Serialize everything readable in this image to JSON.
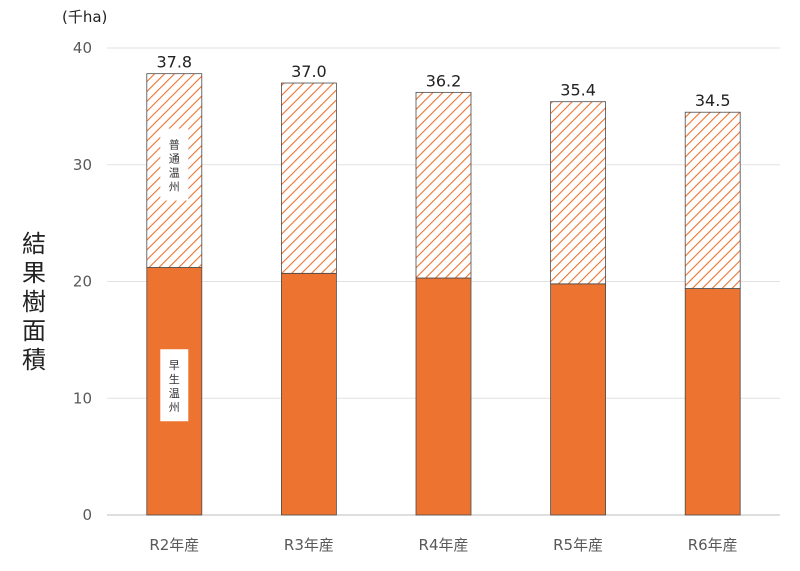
{
  "chart_data": {
    "type": "bar",
    "stacked": true,
    "unit_label": "(千ha)",
    "ylabel": "結果樹面積",
    "ylim": [
      0,
      40
    ],
    "yticks": [
      0,
      10,
      20,
      30,
      40
    ],
    "grid": true,
    "categories": [
      "R2年産",
      "R3年産",
      "R4年産",
      "R5年産",
      "R6年産"
    ],
    "series": [
      {
        "name": "早生温州",
        "values": [
          21.2,
          20.7,
          20.3,
          19.8,
          19.4
        ],
        "color": "#ED7331",
        "pattern": "solid"
      },
      {
        "name": "普通温州",
        "values": [
          16.6,
          16.3,
          15.9,
          15.6,
          15.1
        ],
        "color": "#ED7331",
        "pattern": "diagonal-hatch"
      }
    ],
    "totals": [
      "37.8",
      "37.0",
      "36.2",
      "35.4",
      "34.5"
    ]
  }
}
